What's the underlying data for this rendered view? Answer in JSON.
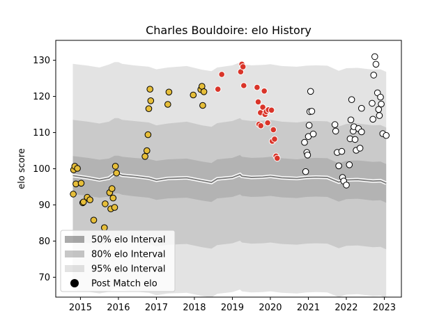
{
  "chart_data": {
    "type": "scatter",
    "title": "Charles Bouldoire: elo History",
    "xlabel": "",
    "ylabel": "elo score",
    "xlim": [
      2014.35,
      2023.45
    ],
    "ylim": [
      64.5,
      135.5
    ],
    "x_ticks": [
      2015,
      2016,
      2017,
      2018,
      2019,
      2020,
      2021,
      2022,
      2023
    ],
    "y_ticks": [
      70,
      80,
      90,
      100,
      110,
      120,
      130
    ],
    "grid": false,
    "legend_position": "lower-left",
    "legend": [
      {
        "label": "50% elo Interval",
        "color": "#b3b3b3"
      },
      {
        "label": "80% elo Interval",
        "color": "#c8c8c8"
      },
      {
        "label": "95% elo Interval",
        "color": "#e2e2e2"
      },
      {
        "label": "Post Match elo",
        "color": "#000000"
      }
    ],
    "bands": {
      "x": [
        2014.8,
        2015.2,
        2015.5,
        2015.75,
        2015.9,
        2016.0,
        2016.1,
        2016.4,
        2016.8,
        2017.0,
        2017.3,
        2017.8,
        2018.2,
        2018.45,
        2018.6,
        2019.0,
        2019.2,
        2019.25,
        2019.5,
        2019.8,
        2020.0,
        2020.3,
        2020.7,
        2020.95,
        2021.2,
        2021.5,
        2021.8,
        2022.0,
        2022.3,
        2022.7,
        2022.9,
        2023.05
      ],
      "center": [
        98.1,
        97.5,
        96.9,
        97.4,
        98.6,
        98.6,
        98.2,
        97.9,
        97.4,
        96.8,
        97.3,
        97.5,
        96.7,
        96.2,
        97.2,
        97.6,
        98.4,
        97.9,
        97.6,
        97.7,
        97.9,
        97.5,
        97.3,
        97.6,
        97.7,
        97.6,
        96.3,
        96.9,
        97.0,
        96.6,
        96.7,
        96.0
      ],
      "p50": [
        [
          93.0,
          103.5
        ],
        [
          92.5,
          103.0
        ],
        [
          92.0,
          102.5
        ],
        [
          92.3,
          102.8
        ],
        [
          93.2,
          103.6
        ],
        [
          93.2,
          103.6
        ],
        [
          92.8,
          103.3
        ],
        [
          92.4,
          103.0
        ],
        [
          92.0,
          102.7
        ],
        [
          91.4,
          102.2
        ],
        [
          91.8,
          102.6
        ],
        [
          92.0,
          102.8
        ],
        [
          91.2,
          102.0
        ],
        [
          90.8,
          101.6
        ],
        [
          91.8,
          102.6
        ],
        [
          92.2,
          103.0
        ],
        [
          92.9,
          103.8
        ],
        [
          92.5,
          103.3
        ],
        [
          92.2,
          103.0
        ],
        [
          92.3,
          103.1
        ],
        [
          92.5,
          103.3
        ],
        [
          92.1,
          102.9
        ],
        [
          91.9,
          102.6
        ],
        [
          92.2,
          102.9
        ],
        [
          92.3,
          103.0
        ],
        [
          92.2,
          102.9
        ],
        [
          90.9,
          101.5
        ],
        [
          91.6,
          102.2
        ],
        [
          91.7,
          102.3
        ],
        [
          91.2,
          101.9
        ],
        [
          91.3,
          102.0
        ],
        [
          90.6,
          101.3
        ]
      ],
      "p80": [
        [
          80.0,
          113.5
        ],
        [
          79.5,
          113.0
        ],
        [
          79.0,
          112.5
        ],
        [
          79.5,
          113.0
        ],
        [
          80.5,
          114.0
        ],
        [
          80.5,
          114.0
        ],
        [
          80.0,
          113.5
        ],
        [
          79.6,
          113.2
        ],
        [
          79.2,
          112.8
        ],
        [
          78.5,
          112.0
        ],
        [
          79.0,
          112.5
        ],
        [
          79.2,
          113.0
        ],
        [
          78.3,
          112.0
        ],
        [
          77.9,
          111.6
        ],
        [
          78.9,
          112.6
        ],
        [
          79.4,
          113.2
        ],
        [
          80.1,
          114.0
        ],
        [
          79.6,
          113.5
        ],
        [
          79.3,
          113.2
        ],
        [
          79.4,
          113.3
        ],
        [
          79.6,
          113.5
        ],
        [
          79.2,
          113.0
        ],
        [
          79.0,
          112.8
        ],
        [
          79.3,
          113.1
        ],
        [
          79.4,
          113.2
        ],
        [
          79.3,
          113.1
        ],
        [
          78.0,
          111.7
        ],
        [
          78.7,
          112.4
        ],
        [
          78.8,
          112.5
        ],
        [
          78.3,
          112.0
        ],
        [
          78.4,
          112.1
        ],
        [
          77.7,
          111.4
        ]
      ],
      "p95": [
        [
          66.5,
          129.0
        ],
        [
          66.0,
          128.5
        ],
        [
          65.5,
          128.0
        ],
        [
          66.0,
          128.8
        ],
        [
          67.0,
          129.5
        ],
        [
          67.0,
          129.5
        ],
        [
          66.5,
          129.0
        ],
        [
          66.1,
          128.6
        ],
        [
          65.7,
          128.2
        ],
        [
          65.0,
          127.5
        ],
        [
          65.5,
          128.0
        ],
        [
          65.7,
          128.4
        ],
        [
          64.8,
          127.4
        ],
        [
          64.4,
          127.0
        ],
        [
          65.4,
          128.0
        ],
        [
          65.9,
          128.6
        ],
        [
          66.6,
          129.4
        ],
        [
          66.1,
          128.9
        ],
        [
          65.8,
          128.6
        ],
        [
          65.9,
          128.7
        ],
        [
          66.1,
          128.9
        ],
        [
          65.7,
          128.4
        ],
        [
          65.5,
          128.2
        ],
        [
          65.8,
          128.5
        ],
        [
          65.9,
          128.6
        ],
        [
          65.8,
          128.5
        ],
        [
          64.5,
          127.1
        ],
        [
          65.2,
          127.8
        ],
        [
          65.3,
          127.9
        ],
        [
          64.8,
          127.4
        ],
        [
          64.9,
          127.5
        ],
        [
          64.2,
          126.8
        ]
      ]
    },
    "series": [
      {
        "color": "#e6be3a",
        "edge": "#000000",
        "points": [
          [
            2014.82,
            99.7
          ],
          [
            2014.85,
            100.7
          ],
          [
            2014.92,
            100.1
          ],
          [
            2014.88,
            95.8
          ],
          [
            2014.81,
            93.0
          ],
          [
            2015.02,
            96.0
          ],
          [
            2015.06,
            90.6
          ],
          [
            2015.08,
            90.8
          ],
          [
            2015.18,
            92.1
          ],
          [
            2015.25,
            91.4
          ],
          [
            2015.35,
            85.8
          ],
          [
            2015.63,
            83.7
          ],
          [
            2015.65,
            90.3
          ],
          [
            2015.77,
            93.4
          ],
          [
            2015.8,
            88.9
          ],
          [
            2015.83,
            94.5
          ],
          [
            2015.86,
            91.9
          ],
          [
            2015.9,
            89.3
          ],
          [
            2015.92,
            100.7
          ],
          [
            2015.95,
            98.8
          ],
          [
            2016.7,
            103.4
          ],
          [
            2016.75,
            105.0
          ],
          [
            2016.78,
            109.4
          ],
          [
            2016.8,
            116.6
          ],
          [
            2016.83,
            122.0
          ],
          [
            2016.85,
            118.8
          ],
          [
            2017.33,
            121.2
          ],
          [
            2017.3,
            117.8
          ],
          [
            2017.97,
            120.4
          ],
          [
            2018.17,
            121.9
          ],
          [
            2018.2,
            122.8
          ],
          [
            2018.22,
            117.5
          ],
          [
            2018.25,
            121.3
          ]
        ]
      },
      {
        "color": "#d9352a",
        "edge": "#ffffff",
        "points": [
          [
            2018.62,
            122.0
          ],
          [
            2018.72,
            126.1
          ],
          [
            2019.22,
            126.8
          ],
          [
            2019.25,
            128.9
          ],
          [
            2019.28,
            128.2
          ],
          [
            2019.3,
            123.0
          ],
          [
            2019.65,
            122.5
          ],
          [
            2019.68,
            118.5
          ],
          [
            2019.7,
            112.3
          ],
          [
            2019.75,
            111.9
          ],
          [
            2019.74,
            115.5
          ],
          [
            2019.8,
            117.0
          ],
          [
            2019.84,
            121.5
          ],
          [
            2019.86,
            115.0
          ],
          [
            2019.89,
            115.8
          ],
          [
            2019.93,
            112.7
          ],
          [
            2019.95,
            116.3
          ],
          [
            2020.03,
            116.2
          ],
          [
            2020.05,
            107.6
          ],
          [
            2020.08,
            110.8
          ],
          [
            2020.11,
            108.2
          ],
          [
            2020.15,
            103.5
          ],
          [
            2020.18,
            102.9
          ]
        ]
      },
      {
        "color": "#ffffff",
        "edge": "#000000",
        "points": [
          [
            2020.9,
            107.3
          ],
          [
            2020.93,
            99.2
          ],
          [
            2020.96,
            104.5
          ],
          [
            2020.98,
            103.8
          ],
          [
            2021.0,
            108.9
          ],
          [
            2021.02,
            112.0
          ],
          [
            2021.04,
            115.8
          ],
          [
            2021.06,
            121.4
          ],
          [
            2021.09,
            115.9
          ],
          [
            2021.13,
            109.6
          ],
          [
            2021.7,
            112.2
          ],
          [
            2021.72,
            110.4
          ],
          [
            2021.76,
            104.5
          ],
          [
            2021.8,
            100.8
          ],
          [
            2021.88,
            104.8
          ],
          [
            2021.9,
            97.6
          ],
          [
            2021.93,
            96.6
          ],
          [
            2022.0,
            95.5
          ],
          [
            2022.08,
            101.1
          ],
          [
            2022.1,
            108.3
          ],
          [
            2022.12,
            113.5
          ],
          [
            2022.14,
            119.1
          ],
          [
            2022.18,
            110.4
          ],
          [
            2022.2,
            111.6
          ],
          [
            2022.23,
            108.1
          ],
          [
            2022.26,
            105.1
          ],
          [
            2022.32,
            111.1
          ],
          [
            2022.36,
            105.7
          ],
          [
            2022.4,
            116.7
          ],
          [
            2022.4,
            110.2
          ],
          [
            2022.68,
            118.1
          ],
          [
            2022.7,
            113.7
          ],
          [
            2022.72,
            125.9
          ],
          [
            2022.75,
            131.0
          ],
          [
            2022.78,
            128.9
          ],
          [
            2022.82,
            121.0
          ],
          [
            2022.85,
            116.4
          ],
          [
            2022.87,
            114.7
          ],
          [
            2022.9,
            119.8
          ],
          [
            2022.92,
            117.9
          ],
          [
            2022.96,
            109.7
          ],
          [
            2023.05,
            109.2
          ]
        ]
      }
    ]
  }
}
